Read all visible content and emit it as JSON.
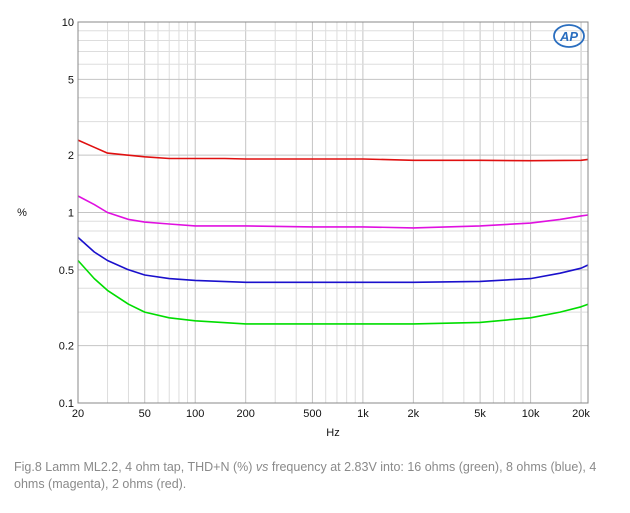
{
  "chart_data": {
    "type": "line",
    "xlabel": "Hz",
    "ylabel": "%",
    "xscale": "log",
    "yscale": "log",
    "xlim": [
      20,
      22000
    ],
    "ylim": [
      0.1,
      10
    ],
    "grid": true,
    "x_ticks": [
      {
        "value": 20,
        "label": "20"
      },
      {
        "value": 50,
        "label": "50"
      },
      {
        "value": 100,
        "label": "100"
      },
      {
        "value": 200,
        "label": "200"
      },
      {
        "value": 500,
        "label": "500"
      },
      {
        "value": 1000,
        "label": "1k"
      },
      {
        "value": 2000,
        "label": "2k"
      },
      {
        "value": 5000,
        "label": "5k"
      },
      {
        "value": 10000,
        "label": "10k"
      },
      {
        "value": 20000,
        "label": "20k"
      }
    ],
    "y_ticks": [
      {
        "value": 0.1,
        "label": "0.1"
      },
      {
        "value": 0.2,
        "label": "0.2"
      },
      {
        "value": 0.5,
        "label": "0.5"
      },
      {
        "value": 1,
        "label": "1"
      },
      {
        "value": 2,
        "label": "2"
      },
      {
        "value": 5,
        "label": "5"
      },
      {
        "value": 10,
        "label": "10"
      }
    ],
    "series": [
      {
        "color": "#00dd00",
        "x": [
          20,
          25,
          30,
          40,
          50,
          70,
          100,
          200,
          500,
          1000,
          2000,
          5000,
          10000,
          15000,
          20000,
          22000
        ],
        "y": [
          0.56,
          0.45,
          0.39,
          0.33,
          0.3,
          0.28,
          0.27,
          0.26,
          0.26,
          0.26,
          0.26,
          0.265,
          0.28,
          0.3,
          0.32,
          0.33
        ]
      },
      {
        "color": "#1a10cc",
        "x": [
          20,
          25,
          30,
          40,
          50,
          70,
          100,
          200,
          500,
          1000,
          2000,
          5000,
          10000,
          15000,
          20000,
          22000
        ],
        "y": [
          0.74,
          0.62,
          0.56,
          0.5,
          0.47,
          0.45,
          0.44,
          0.43,
          0.43,
          0.43,
          0.43,
          0.435,
          0.45,
          0.48,
          0.51,
          0.53
        ]
      },
      {
        "color": "#e010e0",
        "x": [
          20,
          25,
          30,
          40,
          50,
          70,
          100,
          200,
          500,
          1000,
          2000,
          5000,
          10000,
          15000,
          20000,
          22000
        ],
        "y": [
          1.22,
          1.1,
          1.0,
          0.92,
          0.89,
          0.87,
          0.85,
          0.85,
          0.84,
          0.84,
          0.83,
          0.85,
          0.88,
          0.92,
          0.96,
          0.97
        ]
      },
      {
        "color": "#e01010",
        "x": [
          20,
          25,
          30,
          40,
          50,
          70,
          100,
          150,
          200,
          500,
          1000,
          2000,
          5000,
          10000,
          20000,
          22000
        ],
        "y": [
          2.4,
          2.2,
          2.05,
          2.0,
          1.96,
          1.92,
          1.92,
          1.92,
          1.91,
          1.91,
          1.91,
          1.88,
          1.88,
          1.87,
          1.88,
          1.9
        ]
      }
    ]
  },
  "caption": {
    "prefix": "Fig.8 Lamm ML2.2, 4 ohm tap, THD+N (%) ",
    "vs": "vs",
    "suffix": " frequency at 2.83V into: 16 ohms (green), 8 ohms (blue), 4 ohms (magenta), 2 ohms (red)."
  },
  "logo": {
    "text": "AP",
    "color": "#2a6ebf"
  }
}
